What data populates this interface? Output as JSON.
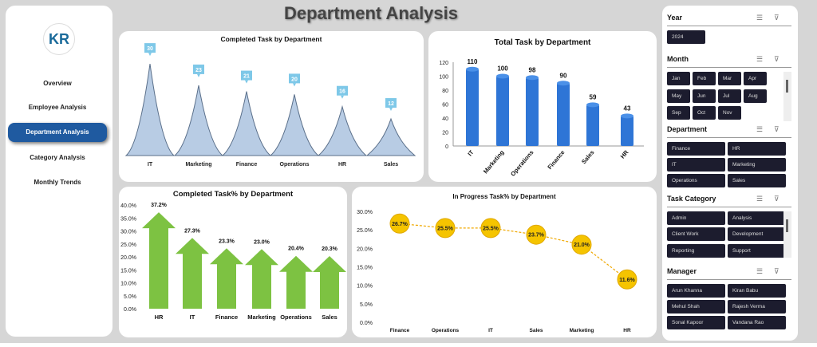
{
  "header": {
    "title": "Department Analysis"
  },
  "nav": {
    "logo_text": "KR",
    "items": [
      {
        "label": "Overview"
      },
      {
        "label": "Employee Analysis"
      },
      {
        "label": "Department Analysis",
        "active": true
      },
      {
        "label": "Category Analysis"
      },
      {
        "label": "Monthly Trends"
      }
    ]
  },
  "slicers": {
    "year": {
      "title": "Year",
      "items": [
        "2024"
      ]
    },
    "month": {
      "title": "Month",
      "items": [
        "Jan",
        "Feb",
        "Mar",
        "Apr",
        "May",
        "Jun",
        "Jul",
        "Aug",
        "Sep",
        "Oct",
        "Nov"
      ]
    },
    "department": {
      "title": "Department",
      "items": [
        "Finance",
        "HR",
        "IT",
        "Marketing",
        "Operations",
        "Sales"
      ]
    },
    "task_category": {
      "title": "Task Category",
      "items": [
        "Admin",
        "Analysis",
        "Client Work",
        "Development",
        "Reporting",
        "Support"
      ]
    },
    "manager": {
      "title": "Manager",
      "items": [
        "Arun Khanna",
        "Kiran Babu",
        "Mehul Shah",
        "Rajesh Verma",
        "Sonal Kapoor",
        "Vandana Rao"
      ]
    },
    "icons": {
      "multiselect": "multi-select-icon",
      "clear": "clear-filter-icon"
    }
  },
  "chart_data": [
    {
      "type": "area",
      "title": "Completed Task by Department",
      "categories": [
        "IT",
        "Marketing",
        "Finance",
        "Operations",
        "HR",
        "Sales"
      ],
      "values": [
        30,
        23,
        21,
        20,
        16,
        12
      ],
      "color": "#b8cce4"
    },
    {
      "type": "bar",
      "title": "Total Task by Department",
      "categories": [
        "IT",
        "Marketing",
        "Operations",
        "Finance",
        "Sales",
        "HR"
      ],
      "values": [
        110,
        100,
        98,
        90,
        59,
        43
      ],
      "ylim": [
        0,
        120
      ],
      "yticks": [
        0,
        10,
        20,
        30,
        40,
        50,
        60,
        70,
        80,
        90,
        100,
        110,
        120
      ],
      "color": "#2e75d6"
    },
    {
      "type": "bar",
      "title": "Completed Task% by Department",
      "categories": [
        "HR",
        "IT",
        "Finance",
        "Marketing",
        "Operations",
        "Sales"
      ],
      "values": [
        37.2,
        27.3,
        23.3,
        23.0,
        20.4,
        20.3
      ],
      "labels": [
        "37.2%",
        "27.3%",
        "23.3%",
        "23.0%",
        "20.4%",
        "20.3%"
      ],
      "ylim": [
        0,
        40
      ],
      "yticks": [
        "0.0%",
        "5.0%",
        "10.0%",
        "15.0%",
        "20.0%",
        "25.0%",
        "30.0%",
        "35.0%",
        "40.0%"
      ],
      "color": "#7dc242"
    },
    {
      "type": "line",
      "title": "In Progress Task% by Department",
      "categories": [
        "Finance",
        "Operations",
        "IT",
        "Sales",
        "Marketing",
        "HR"
      ],
      "values": [
        26.7,
        25.5,
        25.5,
        23.7,
        21.0,
        11.6
      ],
      "labels": [
        "26.7%",
        "25.5%",
        "25.5%",
        "23.7%",
        "21.0%",
        "11.6%"
      ],
      "ylim": [
        0,
        30
      ],
      "yticks": [
        "0.0%",
        "5.0%",
        "10.0%",
        "15.0%",
        "20.0%",
        "25.0%",
        "30.0%"
      ],
      "color": "#f5c400"
    }
  ]
}
